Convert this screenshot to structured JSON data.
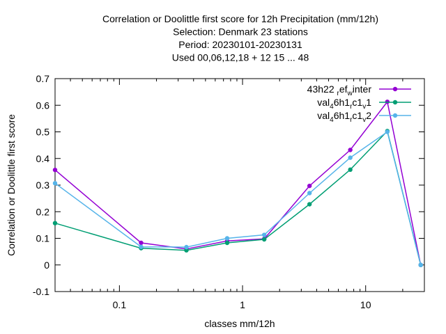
{
  "chart_data": {
    "type": "line",
    "title_lines": [
      "Correlation or Doolittle first score  for 12h Precipitation (mm/12h)",
      "Selection: Denmark      23 stations",
      "Period: 20230101-20230131",
      "Used  00,06,12,18  + 12 15 ... 48"
    ],
    "xlabel": "classes mm/12h",
    "ylabel": "Correlation or Doolittle first score",
    "x_scale": "log",
    "xlim": [
      0.03,
      30
    ],
    "ylim": [
      -0.1,
      0.7
    ],
    "x_ticks": [
      0.1,
      1,
      10
    ],
    "x_tick_labels": [
      "0.1",
      "1",
      "10"
    ],
    "y_ticks": [
      -0.1,
      0,
      0.1,
      0.2,
      0.3,
      0.4,
      0.5,
      0.6,
      0.7
    ],
    "y_tick_labels": [
      "-0.1",
      "0",
      "0.1",
      "0.2",
      "0.3",
      "0.4",
      "0.5",
      "0.6",
      "0.7"
    ],
    "grid": false,
    "legend_position": "top-right",
    "x": [
      0.03,
      0.15,
      0.35,
      0.75,
      1.5,
      3.5,
      7.5,
      15,
      28
    ],
    "series": [
      {
        "name": "43h22 ref winter",
        "legend_parts": [
          [
            "43h22 ",
            "n"
          ],
          [
            "r",
            "sub"
          ],
          [
            "ef",
            "n"
          ],
          [
            "w",
            "sub"
          ],
          [
            "inter",
            "n"
          ]
        ],
        "color": "#9400d3",
        "values": [
          0.357,
          0.083,
          0.06,
          0.09,
          0.098,
          0.297,
          0.432,
          0.613,
          0.0
        ]
      },
      {
        "name": "val 46h1 rc1 v1",
        "legend_parts": [
          [
            "val",
            "n"
          ],
          [
            "4",
            "sub"
          ],
          [
            "6h1",
            "n"
          ],
          [
            "r",
            "sub"
          ],
          [
            "c1",
            "n"
          ],
          [
            "v",
            "sub"
          ],
          [
            "1",
            "n"
          ]
        ],
        "color": "#009e73",
        "values": [
          0.157,
          0.063,
          0.055,
          0.083,
          0.096,
          0.228,
          0.358,
          0.503,
          0.0
        ]
      },
      {
        "name": "val 46h1 rc1 v2",
        "legend_parts": [
          [
            "val",
            "n"
          ],
          [
            "4",
            "sub"
          ],
          [
            "6h1",
            "n"
          ],
          [
            "r",
            "sub"
          ],
          [
            "c1",
            "n"
          ],
          [
            "v",
            "sub"
          ],
          [
            "2",
            "n"
          ]
        ],
        "color": "#56b4e9",
        "values": [
          0.307,
          0.068,
          0.067,
          0.1,
          0.113,
          0.27,
          0.403,
          0.5,
          0.0
        ]
      }
    ]
  }
}
